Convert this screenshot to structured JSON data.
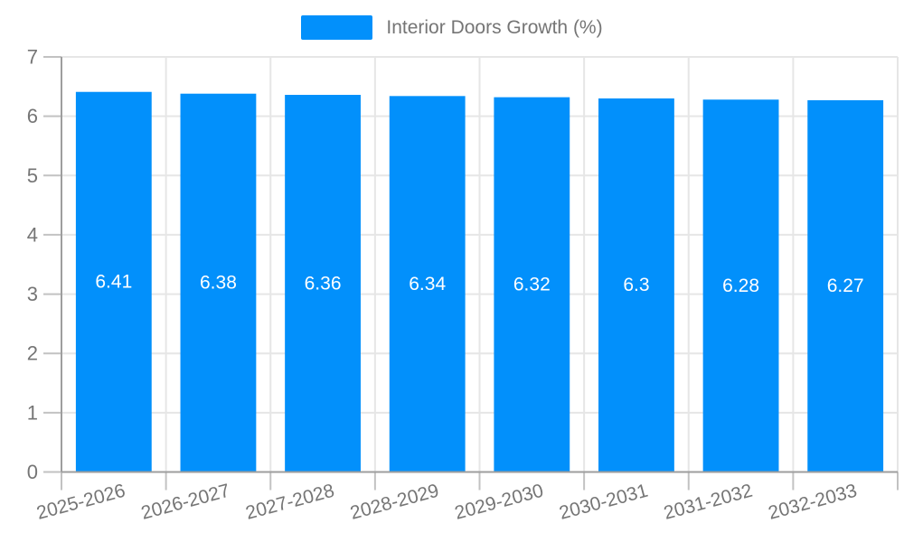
{
  "legend": {
    "label": "Interior Doors Growth (%)"
  },
  "chart_data": {
    "type": "bar",
    "title": "",
    "categories": [
      "2025-2026",
      "2026-2027",
      "2027-2028",
      "2028-2029",
      "2029-2030",
      "2030-2031",
      "2031-2032",
      "2032-2033"
    ],
    "series": [
      {
        "name": "Interior Doors Growth (%)",
        "values": [
          6.41,
          6.38,
          6.36,
          6.34,
          6.32,
          6.3,
          6.28,
          6.27
        ]
      }
    ],
    "value_labels": [
      "6.41",
      "6.38",
      "6.36",
      "6.34",
      "6.32",
      "6.3",
      "6.28",
      "6.27"
    ],
    "xlabel": "",
    "ylabel": "",
    "ylim": [
      0,
      7
    ],
    "yticks": [
      0,
      1,
      2,
      3,
      4,
      5,
      6,
      7
    ],
    "grid": true,
    "legend_position": "top",
    "colors": {
      "bar": "#0290fb",
      "value_label": "#ffffff",
      "axis_label": "#757575",
      "grid_line": "#e6e6e6",
      "axis_line": "#9e9e9e",
      "tick_mark": "#c2c2c2"
    }
  }
}
